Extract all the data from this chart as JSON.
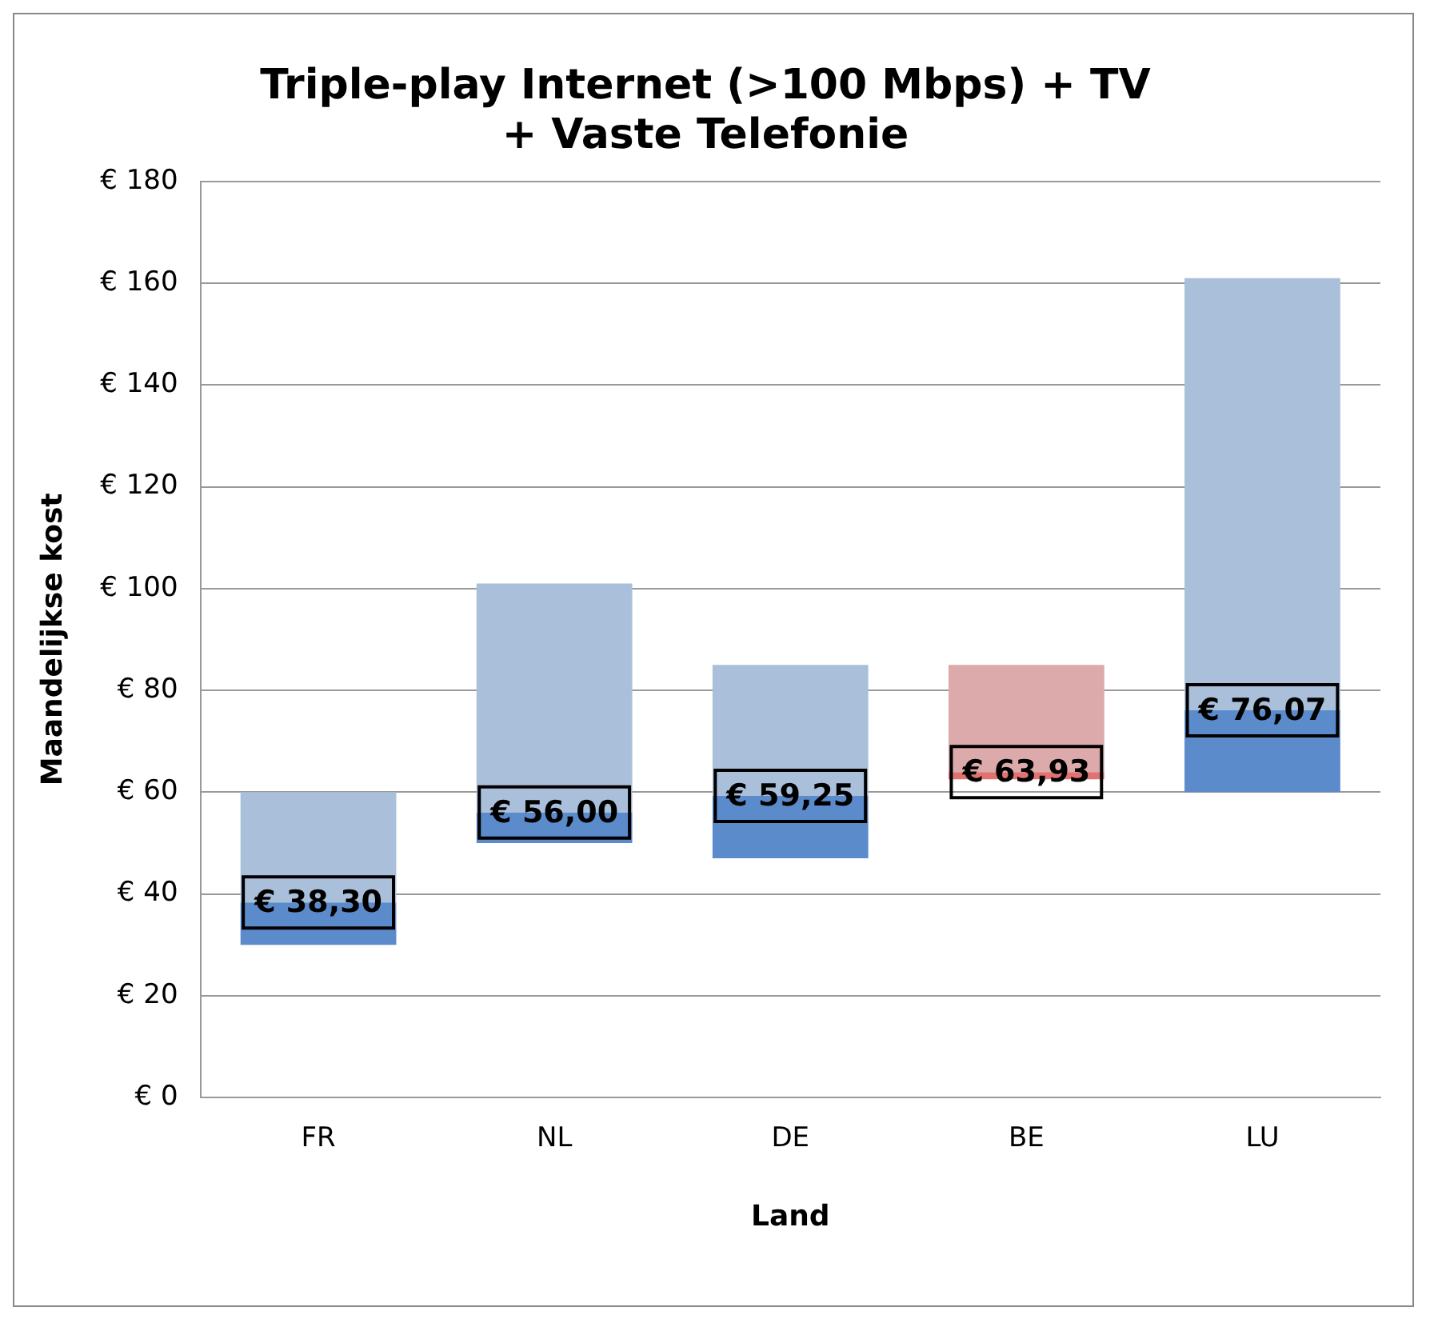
{
  "chart_data": {
    "type": "bar",
    "title": "Triple-play Internet (>100 Mbps) + TV + Vaste Telefonie",
    "xlabel": "Land",
    "ylabel": "Maandelijkse kost",
    "categories": [
      "FR",
      "NL",
      "DE",
      "BE",
      "LU"
    ],
    "series": [
      {
        "base": [
          30,
          50,
          47,
          62.5,
          60
        ],
        "colors": [
          "#5b8bcb",
          "#5b8bcb",
          "#5b8bcb",
          "#e07272",
          "#5b8bcb"
        ],
        "values": [
          8.3,
          6,
          12.25,
          1.43,
          16.07
        ]
      },
      {
        "base": [
          38.3,
          56,
          59.25,
          63.93,
          76.07
        ],
        "colors": [
          "#aac0da",
          "#aac0da",
          "#aac0da",
          "#dcaaaa",
          "#aac0da"
        ],
        "values": [
          21.7,
          45,
          25.75,
          21.07,
          84.93
        ]
      }
    ],
    "ylim": [
      0,
      180
    ],
    "yticks": [
      {
        "value": 0,
        "label": "€ 0"
      },
      {
        "value": 20,
        "label": "€ 20"
      },
      {
        "value": 40,
        "label": "€ 40"
      },
      {
        "value": 60,
        "label": "€ 60"
      },
      {
        "value": 80,
        "label": "€ 80"
      },
      {
        "value": 100,
        "label": "€ 100"
      },
      {
        "value": 120,
        "label": "€ 120"
      },
      {
        "value": 140,
        "label": "€ 140"
      },
      {
        "value": 160,
        "label": "€ 160"
      },
      {
        "value": 180,
        "label": "€ 180"
      }
    ],
    "annotations": [
      {
        "text": "€ 38,30",
        "x": "FR",
        "y": 38.3
      },
      {
        "text": "€ 56,00",
        "x": "NL",
        "y": 56
      },
      {
        "text": "€ 59,25",
        "x": "DE",
        "y": 59.25
      },
      {
        "text": "€ 63,93",
        "x": "BE",
        "y": 63.93
      },
      {
        "text": "€ 76,07",
        "x": "LU",
        "y": 76.07
      }
    ],
    "grid": "y",
    "legend": false
  }
}
